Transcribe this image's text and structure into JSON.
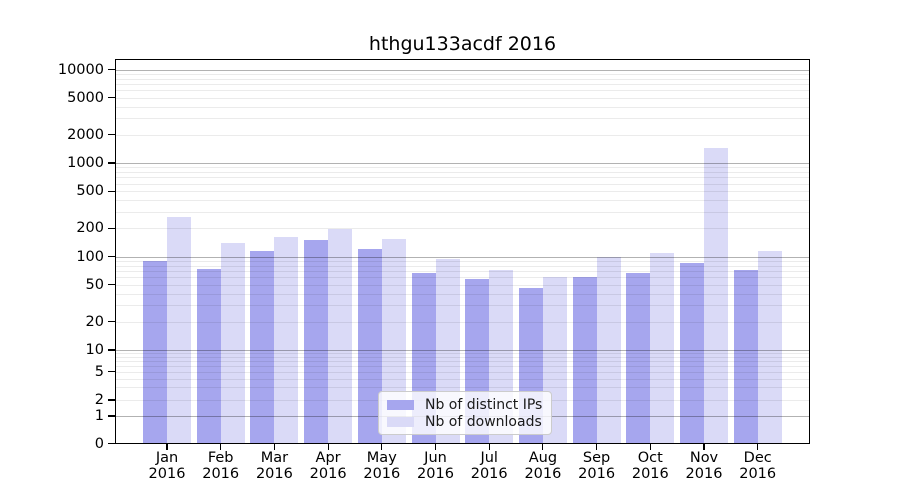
{
  "header": {
    "title": "hthgu133acdf 2016"
  },
  "chart_data": {
    "type": "bar",
    "title": "hthgu133acdf 2016",
    "categories": [
      "Jan",
      "Feb",
      "Mar",
      "Apr",
      "May",
      "Jun",
      "Jul",
      "Aug",
      "Sep",
      "Oct",
      "Nov",
      "Dec"
    ],
    "category_year": "2016",
    "series": [
      {
        "name": "Nb of distinct IPs",
        "color": "#a6a6ee",
        "values": [
          90,
          74,
          115,
          150,
          120,
          66,
          58,
          46,
          61,
          67,
          86,
          72
        ]
      },
      {
        "name": "Nb of downloads",
        "color": "#dadaf7",
        "values": [
          265,
          138,
          160,
          195,
          155,
          95,
          72,
          60,
          100,
          108,
          1450,
          115
        ]
      }
    ],
    "yscale": "symlog",
    "yticks": [
      0,
      1,
      2,
      5,
      10,
      20,
      50,
      100,
      200,
      500,
      1000,
      2000,
      5000,
      10000
    ],
    "ylim": [
      0,
      13000
    ],
    "grid": true,
    "grid_over_bars": true,
    "legend_position": "lower center"
  }
}
